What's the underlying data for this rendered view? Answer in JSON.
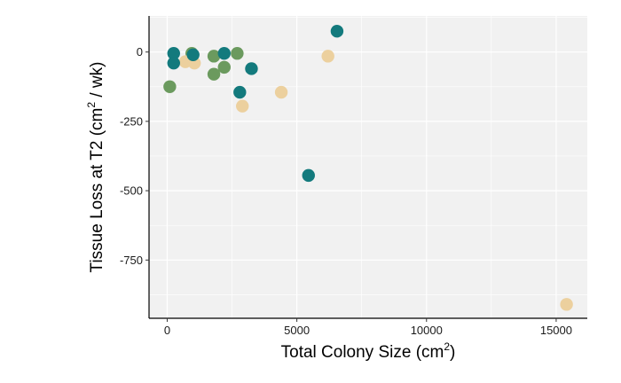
{
  "chart_data": {
    "type": "scatter",
    "xlabel": {
      "text": "Total Colony Size (cm",
      "sup": "2",
      "end": ")"
    },
    "ylabel": {
      "text": "Tissue Loss at T2 (cm",
      "sup": "2",
      "end": " / wk)"
    },
    "xlim": [
      -700,
      16200
    ],
    "ylim": [
      -960,
      130
    ],
    "x_ticks": [
      0,
      5000,
      10000,
      15000
    ],
    "x_tick_labels": [
      "0",
      "5000",
      "10000",
      "15000"
    ],
    "y_ticks": [
      0,
      -250,
      -500,
      -750
    ],
    "y_tick_labels": [
      "0",
      "-250",
      "-500",
      "-750"
    ],
    "grid": true,
    "legend": "none",
    "series": [
      {
        "color": "#6b9a5e",
        "points": [
          {
            "x": 100,
            "y": -125
          },
          {
            "x": 950,
            "y": -5
          },
          {
            "x": 1800,
            "y": -15
          },
          {
            "x": 1800,
            "y": -80
          },
          {
            "x": 2200,
            "y": -55
          },
          {
            "x": 2700,
            "y": -5
          }
        ]
      },
      {
        "color": "#ecd09e",
        "points": [
          {
            "x": 700,
            "y": -35
          },
          {
            "x": 1050,
            "y": -40
          },
          {
            "x": 2900,
            "y": -195
          },
          {
            "x": 4400,
            "y": -145
          },
          {
            "x": 6200,
            "y": -15
          },
          {
            "x": 15400,
            "y": -910
          }
        ]
      },
      {
        "color": "#137a7d",
        "points": [
          {
            "x": 250,
            "y": -5
          },
          {
            "x": 250,
            "y": -40
          },
          {
            "x": 1000,
            "y": -10
          },
          {
            "x": 2200,
            "y": -5
          },
          {
            "x": 2800,
            "y": -145
          },
          {
            "x": 3250,
            "y": -60
          },
          {
            "x": 5450,
            "y": -445
          },
          {
            "x": 6550,
            "y": 75
          }
        ]
      }
    ]
  }
}
